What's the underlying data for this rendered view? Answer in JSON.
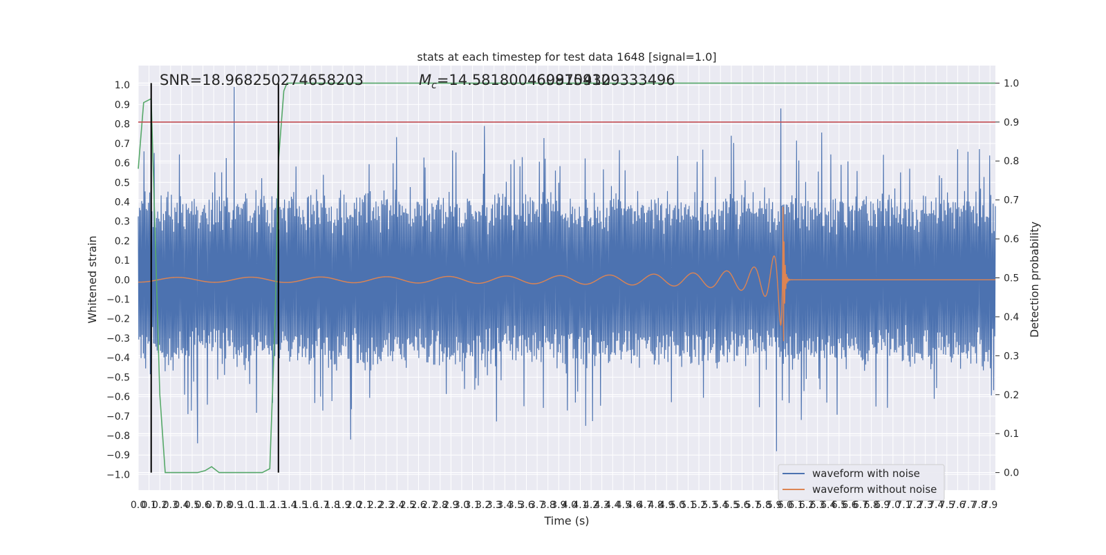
{
  "chart_data": {
    "type": "line",
    "title": "stats at each timestep for test data 1648 [signal=1.0]",
    "xlabel": "Time (s)",
    "ylabel_left": "Whitened strain",
    "ylabel_right": "Detection probability",
    "xlim": [
      0.0,
      7.95
    ],
    "ylim_left": [
      -1.08,
      1.1
    ],
    "ylim_right": [
      -0.045,
      1.045
    ],
    "grid": true,
    "legend_position": "lower-right",
    "annotations": {
      "snr": "SNR=18.968250274658203",
      "mc_prefix": "M",
      "mc_sub": "c",
      "mc_value": "=14.581800460815430",
      "mc_overlap": "4699709129333496"
    },
    "x_ticks": [
      "0.0",
      "0.1",
      "0.2",
      "0.3",
      "0.4",
      "0.5",
      "0.6",
      "0.7",
      "0.8",
      "0.9",
      "1.0",
      "1.1",
      "1.2",
      "1.3",
      "1.4",
      "1.5",
      "1.6",
      "1.7",
      "1.8",
      "1.9",
      "2.0",
      "2.1",
      "2.2",
      "2.3",
      "2.4",
      "2.5",
      "2.6",
      "2.7",
      "2.8",
      "2.9",
      "3.0",
      "3.1",
      "3.2",
      "3.3",
      "3.4",
      "3.5",
      "3.6",
      "3.7",
      "3.8",
      "3.9",
      "4.0",
      "4.1",
      "4.2",
      "4.3",
      "4.4",
      "4.5",
      "4.6",
      "4.7",
      "4.8",
      "4.9",
      "5.0",
      "5.1",
      "5.2",
      "5.3",
      "5.4",
      "5.5",
      "5.6",
      "5.7",
      "5.8",
      "5.9",
      "6.0",
      "6.1",
      "6.2",
      "6.3",
      "6.4",
      "6.5",
      "6.6",
      "6.7",
      "6.8",
      "6.9",
      "7.0",
      "7.1",
      "7.2",
      "7.3",
      "7.4",
      "7.5",
      "7.6",
      "7.7",
      "7.8",
      "7.9"
    ],
    "y_ticks_left": [
      "−1.0",
      "−0.9",
      "−0.8",
      "−0.7",
      "−0.6",
      "−0.5",
      "−0.4",
      "−0.3",
      "−0.2",
      "−0.1",
      "0.0",
      "0.1",
      "0.2",
      "0.3",
      "0.4",
      "0.5",
      "0.6",
      "0.7",
      "0.8",
      "0.9",
      "1.0"
    ],
    "y_ticks_right": [
      "0.0",
      "0.1",
      "0.2",
      "0.3",
      "0.4",
      "0.5",
      "0.6",
      "0.7",
      "0.8",
      "0.9",
      "1.0"
    ],
    "threshold": 0.9,
    "vertical_markers": [
      0.12,
      1.3
    ],
    "merger_time": 5.98,
    "series": [
      {
        "name": "waveform with noise",
        "color": "#4c72b0"
      },
      {
        "name": "waveform without noise",
        "color": "#dd8452"
      },
      {
        "color": "#55a868",
        "x": [
          0.0,
          0.05,
          0.12,
          0.2,
          0.25,
          0.35,
          0.45,
          0.55,
          0.62,
          0.68,
          0.75,
          0.85,
          0.95,
          1.05,
          1.15,
          1.22,
          1.27,
          1.3,
          1.35,
          1.38,
          1.45,
          2.0,
          3.0,
          4.0,
          5.0,
          6.0,
          7.0,
          7.95
        ],
        "y": [
          0.78,
          0.95,
          0.96,
          0.2,
          0.0,
          0.0,
          0.0,
          0.0,
          0.005,
          0.015,
          0.0,
          0.0,
          0.0,
          0.0,
          0.0,
          0.01,
          0.4,
          0.8,
          0.98,
          1.0,
          1.0,
          1.0,
          1.0,
          1.0,
          1.0,
          1.0,
          1.0,
          1.0
        ]
      },
      {
        "color": "#c44e52",
        "x": [
          0.0,
          7.95
        ],
        "y": [
          0.9,
          0.9
        ]
      }
    ],
    "noise_peaks": [
      {
        "x": 0.89,
        "y": 0.99
      },
      {
        "x": 3.21,
        "y": 0.79
      },
      {
        "x": 5.96,
        "y": 0.88
      },
      {
        "x": 0.55,
        "y": -0.84
      },
      {
        "x": 1.97,
        "y": -0.82
      },
      {
        "x": 4.15,
        "y": -0.75
      },
      {
        "x": 5.92,
        "y": -0.88
      },
      {
        "x": 5.5,
        "y": 0.74
      },
      {
        "x": 7.6,
        "y": 0.67
      },
      {
        "x": 6.15,
        "y": -0.72
      }
    ]
  }
}
